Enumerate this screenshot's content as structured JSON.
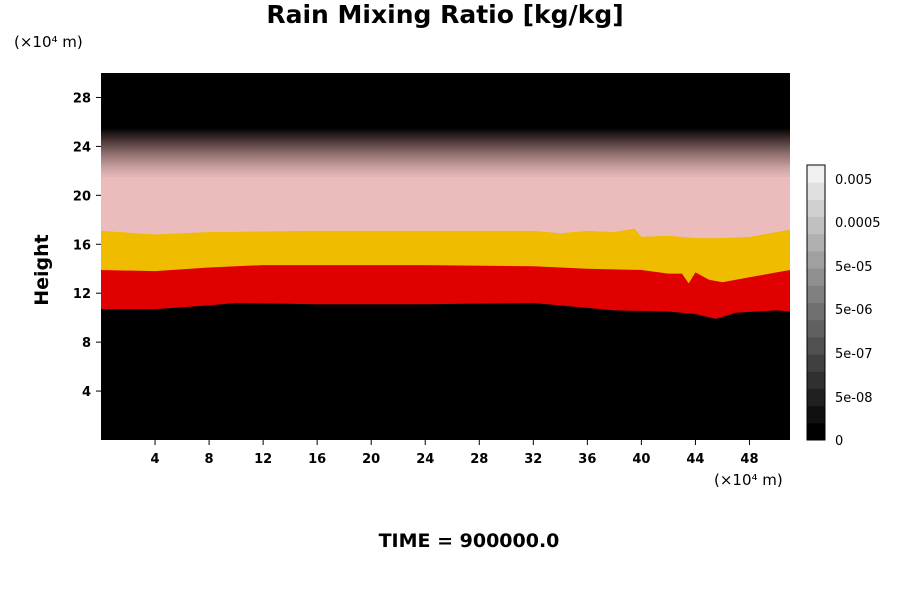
{
  "chart_data": {
    "type": "heatmap",
    "title": "Rain Mixing Ratio [kg/kg]",
    "ylabel": "Height",
    "xlabel": "",
    "x_unit": "(×10⁴ m)",
    "y_unit": "(×10⁴ m)",
    "footer": "TIME = 900000.0",
    "xlim": [
      0,
      51
    ],
    "ylim": [
      0,
      30
    ],
    "x_ticks": [
      "4",
      "8",
      "12",
      "16",
      "20",
      "24",
      "28",
      "32",
      "36",
      "40",
      "44",
      "48"
    ],
    "x_tick_values": [
      4,
      8,
      12,
      16,
      20,
      24,
      28,
      32,
      36,
      40,
      44,
      48
    ],
    "y_ticks": [
      "4",
      "8",
      "12",
      "16",
      "20",
      "24",
      "28"
    ],
    "y_tick_values": [
      4,
      8,
      12,
      16,
      20,
      24,
      28
    ],
    "colorbar": {
      "labels": [
        "0.005",
        "0.0005",
        "5e-05",
        "5e-06",
        "5e-07",
        "5e-08",
        "0"
      ],
      "level_colors": [
        "#000000",
        "#101010",
        "#202020",
        "#303030",
        "#404040",
        "#505050",
        "#606060",
        "#707070",
        "#808080",
        "#909090",
        "#a0a0a0",
        "#b0b0b0",
        "#c0c0c0",
        "#d0d0d0",
        "#e0e0e0",
        "#f0f0f0"
      ]
    },
    "bands": [
      {
        "name": "upper gradient",
        "color_top": "#000000",
        "color_bottom": "#e8b8b8",
        "bottom_height": 21.5,
        "top_height": 25.5
      },
      {
        "name": "pink",
        "color": "#ecbcbc",
        "top_height": 21.5,
        "bottom_boundary": [
          [
            0,
            17.1
          ],
          [
            4,
            16.8
          ],
          [
            8,
            17.0
          ],
          [
            16,
            17.1
          ],
          [
            24,
            17.1
          ],
          [
            32,
            17.1
          ],
          [
            34,
            16.9
          ],
          [
            36,
            17.1
          ],
          [
            38,
            17.0
          ],
          [
            39.5,
            17.3
          ],
          [
            40,
            16.6
          ],
          [
            42,
            16.7
          ],
          [
            44,
            16.5
          ],
          [
            46,
            16.5
          ],
          [
            48,
            16.6
          ],
          [
            50,
            17.0
          ],
          [
            51,
            17.2
          ]
        ]
      },
      {
        "name": "yellow",
        "color": "#f0bc00",
        "bottom_boundary": [
          [
            0,
            13.9
          ],
          [
            4,
            13.8
          ],
          [
            8,
            14.1
          ],
          [
            12,
            14.3
          ],
          [
            16,
            14.3
          ],
          [
            24,
            14.3
          ],
          [
            32,
            14.2
          ],
          [
            36,
            14.0
          ],
          [
            40,
            13.9
          ],
          [
            42,
            13.6
          ],
          [
            43,
            13.6
          ],
          [
            43.5,
            12.8
          ],
          [
            44,
            13.7
          ],
          [
            45,
            13.1
          ],
          [
            46,
            12.9
          ],
          [
            48,
            13.3
          ],
          [
            50,
            13.7
          ],
          [
            51,
            13.9
          ]
        ]
      },
      {
        "name": "red",
        "color": "#e00000",
        "bottom_boundary": [
          [
            0,
            10.7
          ],
          [
            4,
            10.7
          ],
          [
            8,
            11.0
          ],
          [
            10,
            11.2
          ],
          [
            16,
            11.1
          ],
          [
            24,
            11.1
          ],
          [
            32,
            11.2
          ],
          [
            36,
            10.8
          ],
          [
            38,
            10.6
          ],
          [
            42,
            10.5
          ],
          [
            44,
            10.3
          ],
          [
            45.5,
            9.9
          ],
          [
            47,
            10.4
          ],
          [
            50,
            10.6
          ],
          [
            51,
            10.5
          ]
        ]
      },
      {
        "name": "zero",
        "color": "#000000",
        "bottom_height": 0
      }
    ]
  }
}
